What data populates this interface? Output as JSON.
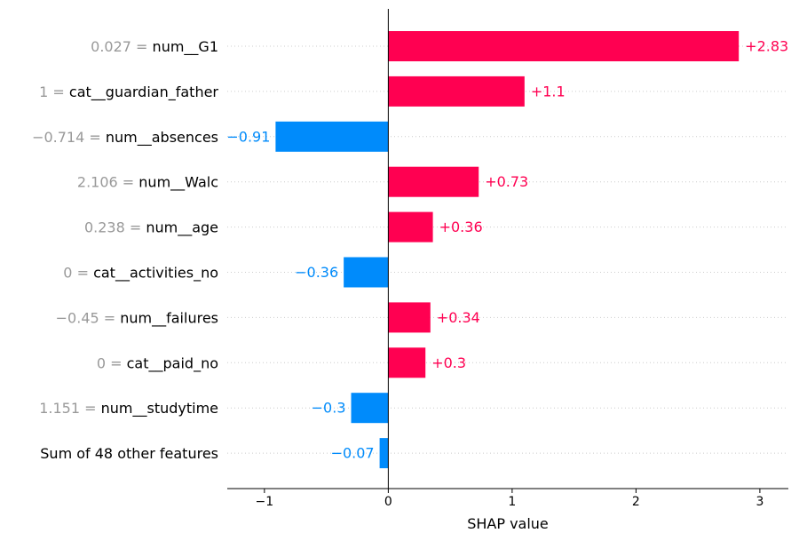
{
  "chart_data": {
    "type": "bar",
    "orientation": "horizontal",
    "xlabel": "SHAP value",
    "xlim": [
      -1.3,
      3.23
    ],
    "xticks": [
      -1,
      0,
      1,
      2,
      3
    ],
    "xtick_labels": [
      "−1",
      "0",
      "1",
      "2",
      "3"
    ],
    "grid": "dotted horizontal row guides",
    "positive_color": "#ff0051",
    "negative_color": "#008bfb",
    "bars": [
      {
        "feature_value": "0.027 =",
        "feature": "num__G1",
        "value": 2.83,
        "label": "+2.83"
      },
      {
        "feature_value": "1 =",
        "feature": "cat__guardian_father",
        "value": 1.1,
        "label": "+1.1"
      },
      {
        "feature_value": "−0.714 =",
        "feature": "num__absences",
        "value": -0.91,
        "label": "−0.91"
      },
      {
        "feature_value": "2.106 =",
        "feature": "num__Walc",
        "value": 0.73,
        "label": "+0.73"
      },
      {
        "feature_value": "0.238 =",
        "feature": "num__age",
        "value": 0.36,
        "label": "+0.36"
      },
      {
        "feature_value": "0 =",
        "feature": "cat__activities_no",
        "value": -0.36,
        "label": "−0.36"
      },
      {
        "feature_value": "−0.45 =",
        "feature": "num__failures",
        "value": 0.34,
        "label": "+0.34"
      },
      {
        "feature_value": "0 =",
        "feature": "cat__paid_no",
        "value": 0.3,
        "label": "+0.3"
      },
      {
        "feature_value": "1.151 =",
        "feature": "num__studytime",
        "value": -0.3,
        "label": "−0.3"
      },
      {
        "feature_value": "",
        "feature": "Sum of 48 other features",
        "value": -0.07,
        "label": "−0.07"
      }
    ]
  }
}
